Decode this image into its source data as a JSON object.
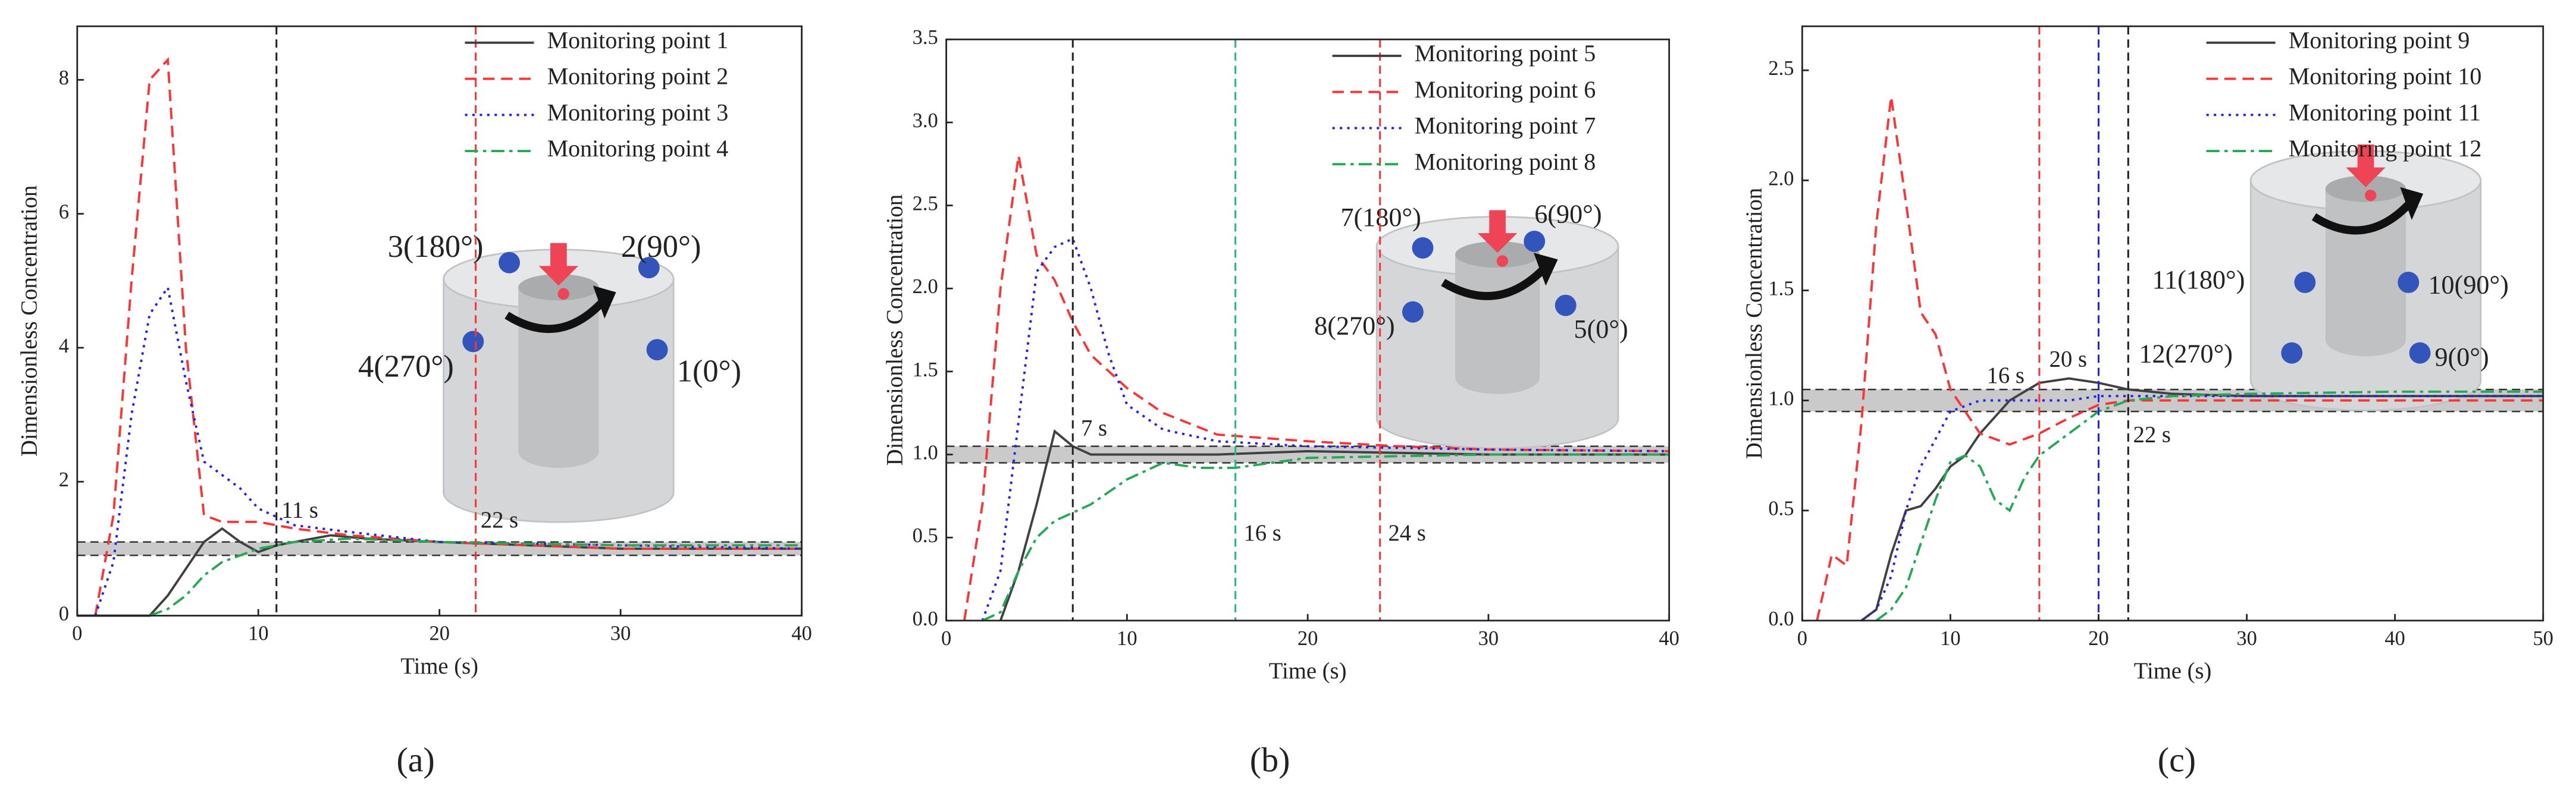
{
  "chart_data": [
    {
      "type": "line",
      "panel_label": "(a)",
      "x_label": "Time (s)",
      "y_label": "Dimensionless Concentration",
      "xlim": [
        0,
        40
      ],
      "xticks": [
        0,
        10,
        20,
        30,
        40
      ],
      "ylim": [
        0,
        8.8
      ],
      "yticks": [
        0,
        2,
        4,
        6,
        8
      ],
      "legend": "upper right",
      "band": [
        0.9,
        1.1
      ],
      "series": [
        {
          "name": "Monitoring point 1",
          "color": "#404040",
          "dash": "solid",
          "x": [
            0,
            4,
            5,
            6,
            7,
            8,
            9,
            10,
            11,
            12,
            14,
            16,
            20,
            25,
            30,
            35,
            40
          ],
          "values": [
            0,
            0,
            0.3,
            0.7,
            1.1,
            1.3,
            1.1,
            0.95,
            1.05,
            1.1,
            1.2,
            1.15,
            1.1,
            1.05,
            1.0,
            1.0,
            1.0
          ]
        },
        {
          "name": "Monitoring point 2",
          "color": "#ff3333",
          "dash": "dashed",
          "x": [
            1,
            2,
            3,
            4,
            5,
            6,
            7,
            8,
            10,
            12,
            15,
            20,
            25,
            30,
            40
          ],
          "values": [
            0,
            1.5,
            5,
            8,
            8.3,
            4,
            1.5,
            1.4,
            1.4,
            1.3,
            1.2,
            1.1,
            1.05,
            1.0,
            1.0
          ]
        },
        {
          "name": "Monitoring point 3",
          "color": "#2222ee",
          "dash": "dotted",
          "x": [
            1,
            2,
            3,
            4,
            5,
            6,
            7,
            8,
            9,
            10,
            12,
            15,
            20,
            30,
            40
          ],
          "values": [
            0,
            0.8,
            3,
            4.5,
            4.9,
            3.5,
            2.3,
            2.1,
            1.9,
            1.6,
            1.35,
            1.25,
            1.1,
            1.05,
            1.0
          ]
        },
        {
          "name": "Monitoring point 4",
          "color": "#22aa55",
          "dash": "dashdot",
          "x": [
            4,
            5,
            6,
            7,
            8,
            9,
            10,
            12,
            15,
            20,
            30,
            40
          ],
          "values": [
            0,
            0.1,
            0.3,
            0.6,
            0.8,
            0.9,
            1.0,
            1.1,
            1.15,
            1.1,
            1.05,
            1.05
          ]
        }
      ],
      "vlines": [
        {
          "x": 11,
          "color": "#222222",
          "label": "11 s"
        },
        {
          "x": 22,
          "color": "#ff3333",
          "label": "22 s"
        }
      ],
      "inset_labels": [
        "3(180°)",
        "2(90°)",
        "4(270°)",
        "1(0°)"
      ]
    },
    {
      "type": "line",
      "panel_label": "(b)",
      "x_label": "Time (s)",
      "y_label": "Dimensionless Concentration",
      "xlim": [
        0,
        40
      ],
      "xticks": [
        0,
        10,
        20,
        30,
        40
      ],
      "ylim": [
        0,
        3.5
      ],
      "yticks": [
        {
          "value": 0,
          "label": "0.0"
        },
        0.5,
        {
          "value": 1,
          "label": "1.0"
        },
        1.5,
        {
          "value": 2,
          "label": "2.0"
        },
        2.5,
        {
          "value": 3,
          "label": "3.0"
        },
        3.5
      ],
      "legend": "upper right",
      "band": [
        0.95,
        1.05
      ],
      "series": [
        {
          "name": "Monitoring point 5",
          "color": "#404040",
          "dash": "solid",
          "x": [
            3,
            4,
            5,
            6,
            7,
            8,
            10,
            15,
            20,
            30,
            40
          ],
          "values": [
            0,
            0.3,
            0.7,
            1.14,
            1.05,
            1.0,
            1.0,
            1.0,
            1.02,
            1.0,
            1.0
          ]
        },
        {
          "name": "Monitoring point 6",
          "color": "#ff3333",
          "dash": "dashed",
          "x": [
            1,
            2,
            3,
            4,
            5,
            6,
            7,
            8,
            10,
            12,
            15,
            20,
            25,
            30,
            40
          ],
          "values": [
            0,
            0.7,
            2.0,
            2.8,
            2.2,
            2.05,
            1.8,
            1.6,
            1.4,
            1.25,
            1.12,
            1.08,
            1.05,
            1.03,
            1.02
          ]
        },
        {
          "name": "Monitoring point 7",
          "color": "#2222ee",
          "dash": "dotted",
          "x": [
            2,
            3,
            4,
            5,
            6,
            7,
            8,
            9,
            10,
            12,
            15,
            20,
            30,
            40
          ],
          "values": [
            0,
            0.3,
            1.2,
            2.1,
            2.25,
            2.3,
            2.0,
            1.6,
            1.3,
            1.15,
            1.08,
            1.05,
            1.03,
            1.02
          ]
        },
        {
          "name": "Monitoring point 8",
          "color": "#22aa55",
          "dash": "dashdot",
          "x": [
            2,
            3,
            4,
            5,
            6,
            7,
            8,
            10,
            12,
            14,
            16,
            20,
            30,
            40
          ],
          "values": [
            0,
            0.05,
            0.3,
            0.5,
            0.6,
            0.65,
            0.7,
            0.85,
            0.95,
            0.92,
            0.92,
            0.98,
            1.0,
            1.0
          ]
        }
      ],
      "vlines": [
        {
          "x": 7,
          "color": "#222222",
          "label": "7 s"
        },
        {
          "x": 16,
          "color": "#22bb88",
          "label": "16 s"
        },
        {
          "x": 24,
          "color": "#ff3333",
          "label": "24 s"
        }
      ],
      "inset_labels": [
        "7(180°)",
        "6(90°)",
        "8(270°)",
        "5(0°)"
      ]
    },
    {
      "type": "line",
      "panel_label": "(c)",
      "x_label": "Time (s)",
      "y_label": "Dimensionless Concentration",
      "xlim": [
        0,
        50
      ],
      "xticks": [
        0,
        10,
        20,
        30,
        40,
        50
      ],
      "ylim": [
        0,
        2.7
      ],
      "yticks": [
        {
          "value": 0,
          "label": "0.0"
        },
        0.5,
        {
          "value": 1,
          "label": "1.0"
        },
        1.5,
        {
          "value": 2,
          "label": "2.0"
        },
        2.5
      ],
      "legend": "upper right",
      "band": [
        0.95,
        1.05
      ],
      "series": [
        {
          "name": "Monitoring point 9",
          "color": "#404040",
          "dash": "solid",
          "x": [
            4,
            5,
            6,
            7,
            8,
            9,
            10,
            11,
            12,
            14,
            16,
            18,
            20,
            22,
            25,
            30,
            40,
            50
          ],
          "values": [
            0,
            0.05,
            0.3,
            0.5,
            0.52,
            0.6,
            0.7,
            0.75,
            0.85,
            1.0,
            1.08,
            1.1,
            1.08,
            1.05,
            1.03,
            1.02,
            1.02,
            1.02
          ]
        },
        {
          "name": "Monitoring point 10",
          "color": "#ff3333",
          "dash": "dashed",
          "x": [
            1,
            2,
            3,
            4,
            5,
            6,
            7,
            8,
            9,
            10,
            12,
            14,
            16,
            18,
            20,
            22,
            25,
            30,
            40,
            50
          ],
          "values": [
            0,
            0.3,
            0.25,
            0.9,
            1.8,
            2.38,
            1.9,
            1.4,
            1.3,
            1.05,
            0.85,
            0.8,
            0.85,
            0.92,
            0.98,
            1.0,
            1.0,
            1.0,
            1.0,
            1.0
          ]
        },
        {
          "name": "Monitoring point 11",
          "color": "#2222ee",
          "dash": "dotted",
          "x": [
            4,
            5,
            6,
            7,
            8,
            10,
            12,
            14,
            16,
            18,
            20,
            22,
            25,
            30,
            40,
            50
          ],
          "values": [
            0,
            0.05,
            0.2,
            0.5,
            0.7,
            0.95,
            1.0,
            1.0,
            1.0,
            1.0,
            1.02,
            1.02,
            1.02,
            1.02,
            1.02,
            1.02
          ]
        },
        {
          "name": "Monitoring point 12",
          "color": "#22aa55",
          "dash": "dashdot",
          "x": [
            5,
            6,
            7,
            8,
            9,
            10,
            11,
            12,
            13,
            14,
            15,
            16,
            18,
            20,
            22,
            25,
            30,
            40,
            50
          ],
          "values": [
            0,
            0.05,
            0.15,
            0.35,
            0.55,
            0.72,
            0.75,
            0.7,
            0.55,
            0.5,
            0.65,
            0.75,
            0.85,
            0.95,
            1.0,
            1.02,
            1.03,
            1.04,
            1.04
          ]
        }
      ],
      "vlines": [
        {
          "x": 16,
          "color": "#ff3333",
          "label": "16 s"
        },
        {
          "x": 20,
          "color": "#2222ee",
          "label": "20 s"
        },
        {
          "x": 22,
          "color": "#222222",
          "label": "22 s"
        }
      ],
      "inset_labels": [
        "11(180°)",
        "10(90°)",
        "12(270°)",
        "9(0°)"
      ]
    }
  ]
}
